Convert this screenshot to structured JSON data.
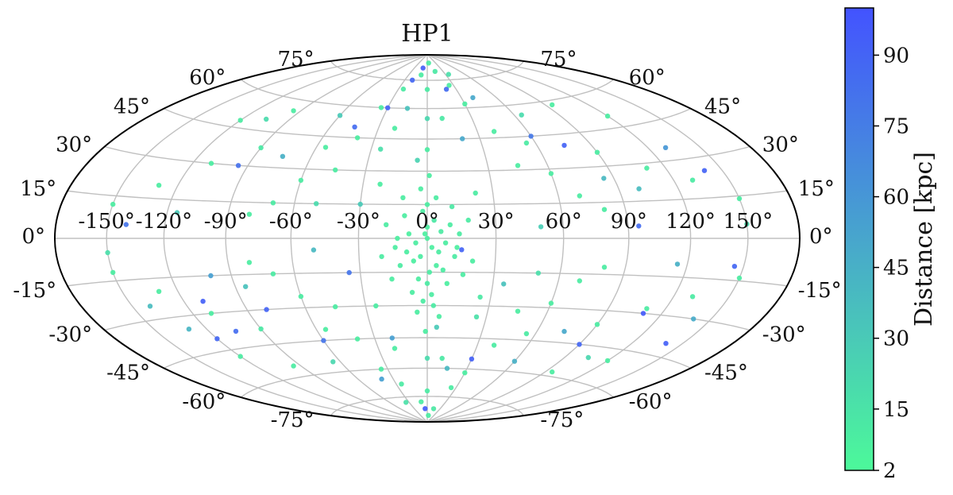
{
  "chart_data": {
    "type": "scatter",
    "projection": "hammer",
    "title": "HP1",
    "xlabel": "",
    "ylabel": "",
    "grid": true,
    "x_tick_labels": [
      {
        "lon": -150,
        "label": "-150°"
      },
      {
        "lon": -120,
        "label": "-120°"
      },
      {
        "lon": -90,
        "label": "-90°"
      },
      {
        "lon": -60,
        "label": "-60°"
      },
      {
        "lon": -30,
        "label": "-30°"
      },
      {
        "lon": 0,
        "label": "0°"
      },
      {
        "lon": 30,
        "label": "30°"
      },
      {
        "lon": 60,
        "label": "60°"
      },
      {
        "lon": 90,
        "label": "90°"
      },
      {
        "lon": 120,
        "label": "120°"
      },
      {
        "lon": 150,
        "label": "150°"
      }
    ],
    "y_tick_labels": [
      {
        "lat": 75,
        "label": "75°"
      },
      {
        "lat": 60,
        "label": "60°"
      },
      {
        "lat": 45,
        "label": "45°"
      },
      {
        "lat": 30,
        "label": "30°"
      },
      {
        "lat": 15,
        "label": "15°"
      },
      {
        "lat": 0,
        "label": "0°"
      },
      {
        "lat": -15,
        "label": "-15°"
      },
      {
        "lat": -30,
        "label": "-30°"
      },
      {
        "lat": -45,
        "label": "-45°"
      },
      {
        "lat": -60,
        "label": "-60°"
      },
      {
        "lat": -75,
        "label": "-75°"
      }
    ],
    "colorbar": {
      "label": "Distance [kpc]",
      "range": [
        2,
        100
      ],
      "ticks": [
        2,
        15,
        30,
        45,
        60,
        75,
        90
      ],
      "color_low": "#4cf99a",
      "color_high": "#4353ff"
    },
    "points": [
      [
        0,
        5,
        9
      ],
      [
        2,
        -4,
        8
      ],
      [
        -3,
        -8,
        10
      ],
      [
        4,
        -12,
        9
      ],
      [
        -1,
        2,
        8
      ],
      [
        6,
        3,
        11
      ],
      [
        -5,
        -2,
        9
      ],
      [
        1,
        -15,
        10
      ],
      [
        3,
        8,
        12
      ],
      [
        -2,
        12,
        9
      ],
      [
        -6,
        -10,
        8
      ],
      [
        5,
        -6,
        10
      ],
      [
        8,
        -2,
        9
      ],
      [
        -8,
        2,
        8
      ],
      [
        0,
        -20,
        11
      ],
      [
        2,
        -25,
        10
      ],
      [
        -4,
        -18,
        9
      ],
      [
        7,
        -14,
        10
      ],
      [
        -9,
        -6,
        9
      ],
      [
        10,
        6,
        10
      ],
      [
        -10,
        10,
        9
      ],
      [
        12,
        -8,
        11
      ],
      [
        -12,
        -12,
        10
      ],
      [
        0,
        15,
        9
      ],
      [
        4,
        18,
        10
      ],
      [
        -3,
        22,
        9
      ],
      [
        9,
        -20,
        8
      ],
      [
        -7,
        -24,
        9
      ],
      [
        14,
        2,
        10
      ],
      [
        -14,
        -4,
        9
      ],
      [
        3,
        -30,
        11
      ],
      [
        -2,
        -28,
        10
      ],
      [
        11,
        14,
        12
      ],
      [
        -11,
        18,
        9
      ],
      [
        16,
        -16,
        10
      ],
      [
        -16,
        -18,
        9
      ],
      [
        1,
        28,
        9
      ],
      [
        6,
        -35,
        10
      ],
      [
        -5,
        -33,
        9
      ],
      [
        18,
        8,
        11
      ],
      [
        -18,
        6,
        10
      ],
      [
        20,
        -10,
        9
      ],
      [
        -20,
        -8,
        10
      ],
      [
        0,
        40,
        10
      ],
      [
        -1,
        -42,
        9
      ],
      [
        22,
        20,
        10
      ],
      [
        -22,
        24,
        9
      ],
      [
        25,
        -26,
        12
      ],
      [
        -25,
        -30,
        10
      ],
      [
        13,
        -4,
        8
      ],
      [
        -13,
        0,
        8
      ],
      [
        0,
        0,
        8
      ],
      [
        -20,
        50,
        10
      ],
      [
        10,
        55,
        12
      ],
      [
        -35,
        60,
        10
      ],
      [
        30,
        62,
        9
      ],
      [
        0,
        70,
        11
      ],
      [
        -10,
        78,
        10
      ],
      [
        15,
        80,
        12
      ],
      [
        5,
        85,
        10
      ],
      [
        -40,
        45,
        9
      ],
      [
        40,
        48,
        10
      ],
      [
        -55,
        40,
        9
      ],
      [
        55,
        42,
        11
      ],
      [
        -45,
        30,
        10
      ],
      [
        45,
        32,
        9
      ],
      [
        -60,
        25,
        10
      ],
      [
        60,
        28,
        9
      ],
      [
        -70,
        15,
        11
      ],
      [
        70,
        18,
        10
      ],
      [
        -80,
        10,
        9
      ],
      [
        80,
        12,
        10
      ],
      [
        -90,
        38,
        12
      ],
      [
        90,
        36,
        10
      ],
      [
        -110,
        30,
        9
      ],
      [
        110,
        28,
        10
      ],
      [
        -130,
        20,
        9
      ],
      [
        130,
        22,
        11
      ],
      [
        -150,
        12,
        9
      ],
      [
        150,
        14,
        10
      ],
      [
        -95,
        55,
        10
      ],
      [
        95,
        58,
        9
      ],
      [
        -120,
        48,
        10
      ],
      [
        120,
        50,
        9
      ],
      [
        -25,
        70,
        11
      ],
      [
        25,
        72,
        10
      ],
      [
        -20,
        -50,
        10
      ],
      [
        10,
        -55,
        12
      ],
      [
        -35,
        -60,
        10
      ],
      [
        30,
        -62,
        9
      ],
      [
        0,
        -72,
        11
      ],
      [
        -10,
        -78,
        10
      ],
      [
        15,
        -82,
        12
      ],
      [
        5,
        -86,
        10
      ],
      [
        -40,
        -45,
        9
      ],
      [
        40,
        -48,
        10
      ],
      [
        -55,
        -40,
        9
      ],
      [
        55,
        -42,
        11
      ],
      [
        -45,
        -30,
        10
      ],
      [
        45,
        -32,
        9
      ],
      [
        -60,
        -25,
        10
      ],
      [
        60,
        -28,
        9
      ],
      [
        -70,
        -15,
        11
      ],
      [
        70,
        -18,
        10
      ],
      [
        -80,
        -10,
        9
      ],
      [
        80,
        -12,
        10
      ],
      [
        -90,
        -38,
        12
      ],
      [
        90,
        -36,
        10
      ],
      [
        -110,
        -30,
        9
      ],
      [
        110,
        -28,
        10
      ],
      [
        -130,
        -20,
        9
      ],
      [
        130,
        -22,
        11
      ],
      [
        -150,
        -12,
        9
      ],
      [
        150,
        -14,
        10
      ],
      [
        -95,
        -55,
        10
      ],
      [
        95,
        -58,
        9
      ],
      [
        -120,
        -48,
        10
      ],
      [
        120,
        -50,
        9
      ],
      [
        -25,
        -68,
        11
      ],
      [
        25,
        -70,
        10
      ],
      [
        -30,
        15,
        30
      ],
      [
        35,
        -20,
        35
      ],
      [
        -50,
        -5,
        40
      ],
      [
        50,
        5,
        28
      ],
      [
        -75,
        35,
        45
      ],
      [
        75,
        -40,
        50
      ],
      [
        -100,
        -15,
        55
      ],
      [
        100,
        20,
        38
      ],
      [
        -130,
        -35,
        42
      ],
      [
        130,
        35,
        60
      ],
      [
        -15,
        60,
        35
      ],
      [
        15,
        -60,
        40
      ],
      [
        -60,
        55,
        30
      ],
      [
        60,
        -55,
        45
      ],
      [
        -5,
        35,
        25
      ],
      [
        5,
        -40,
        30
      ],
      [
        20,
        45,
        50
      ],
      [
        -20,
        -45,
        55
      ],
      [
        -85,
        -20,
        35
      ],
      [
        85,
        25,
        40
      ],
      [
        -115,
        10,
        30
      ],
      [
        115,
        -10,
        45
      ],
      [
        -140,
        -25,
        38
      ],
      [
        140,
        -30,
        48
      ],
      [
        -40,
        -65,
        55
      ],
      [
        40,
        65,
        50
      ],
      [
        -110,
        -25,
        92
      ],
      [
        -120,
        -40,
        88
      ],
      [
        -105,
        -38,
        85
      ],
      [
        -80,
        -30,
        90
      ],
      [
        140,
        -40,
        92
      ],
      [
        145,
        -10,
        88
      ],
      [
        110,
        -30,
        95
      ],
      [
        95,
        5,
        85
      ],
      [
        75,
        40,
        90
      ],
      [
        90,
        -45,
        88
      ],
      [
        30,
        -55,
        92
      ],
      [
        -5,
        -82,
        95
      ],
      [
        -30,
        60,
        90
      ],
      [
        -45,
        50,
        85
      ],
      [
        -20,
        75,
        88
      ],
      [
        15,
        -5,
        90
      ],
      [
        -10,
        82,
        92
      ],
      [
        20,
        70,
        85
      ],
      [
        -60,
        -45,
        80
      ],
      [
        60,
        45,
        78
      ],
      [
        -35,
        -15,
        80
      ],
      [
        -95,
        30,
        82
      ],
      [
        140,
        25,
        90
      ],
      [
        -140,
        5,
        80
      ],
      [
        -50,
        15,
        20
      ],
      [
        50,
        -15,
        18
      ],
      [
        -65,
        -55,
        22
      ],
      [
        65,
        55,
        20
      ],
      [
        -25,
        40,
        18
      ],
      [
        25,
        -35,
        16
      ],
      [
        -105,
        50,
        20
      ],
      [
        105,
        -50,
        22
      ],
      [
        -150,
        -5,
        18
      ],
      [
        150,
        5,
        20
      ],
      [
        -35,
        -78,
        16
      ],
      [
        35,
        78,
        18
      ],
      [
        0,
        -55,
        20
      ],
      [
        0,
        55,
        22
      ]
    ]
  }
}
